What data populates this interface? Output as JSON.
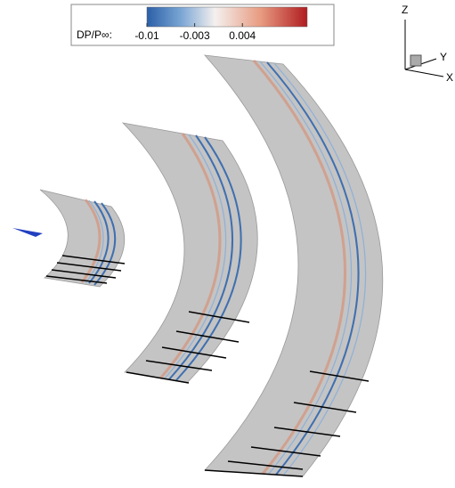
{
  "colorbar": {
    "label": "DP/P∞:",
    "range": [
      -0.01,
      0.0135
    ],
    "ticks": [
      -0.01,
      -0.003,
      0.004
    ]
  },
  "axes": {
    "z": "Z",
    "y": "Y",
    "x": "X"
  }
}
